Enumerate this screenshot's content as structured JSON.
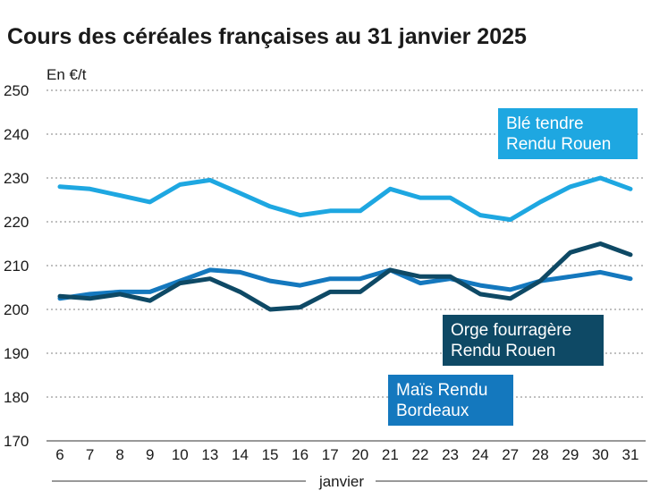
{
  "chart_data": {
    "type": "line",
    "title": "Cours des céréales françaises au 31 janvier 2025",
    "ylabel": "En €/t",
    "xlabel": "janvier",
    "ylim": [
      170,
      250
    ],
    "yticks": [
      170,
      180,
      190,
      200,
      210,
      220,
      230,
      240,
      250
    ],
    "categories": [
      "6",
      "7",
      "8",
      "9",
      "10",
      "13",
      "14",
      "15",
      "16",
      "17",
      "20",
      "21",
      "22",
      "23",
      "24",
      "27",
      "28",
      "29",
      "30",
      "31"
    ],
    "series": [
      {
        "name": "Blé tendre Rendu Rouen",
        "legend_lines": [
          "Blé tendre",
          "Rendu Rouen"
        ],
        "color": "#1ea7e1",
        "values": [
          228,
          227.5,
          226,
          224.5,
          228.5,
          229.5,
          226.5,
          223.5,
          221.5,
          222.5,
          222.5,
          227.5,
          225.5,
          225.5,
          221.5,
          220.5,
          224.5,
          228,
          230,
          227.5
        ]
      },
      {
        "name": "Maïs Rendu Bordeaux",
        "legend_lines": [
          "Maïs Rendu",
          "Bordeaux"
        ],
        "color": "#1478be",
        "values": [
          202.5,
          203.5,
          204,
          204,
          206.5,
          209,
          208.5,
          206.5,
          205.5,
          207,
          207,
          209,
          206,
          207,
          205.5,
          204.5,
          206.5,
          207.5,
          208.5,
          207
        ]
      },
      {
        "name": "Orge fourragère Rendu Rouen",
        "legend_lines": [
          "Orge fourragère",
          "Rendu Rouen"
        ],
        "color": "#0e4965",
        "values": [
          203,
          202.5,
          203.5,
          202,
          206,
          207,
          204,
          200,
          200.5,
          204,
          204,
          209,
          207.5,
          207.5,
          203.5,
          202.5,
          206.5,
          213,
          215,
          212.5
        ]
      }
    ]
  }
}
